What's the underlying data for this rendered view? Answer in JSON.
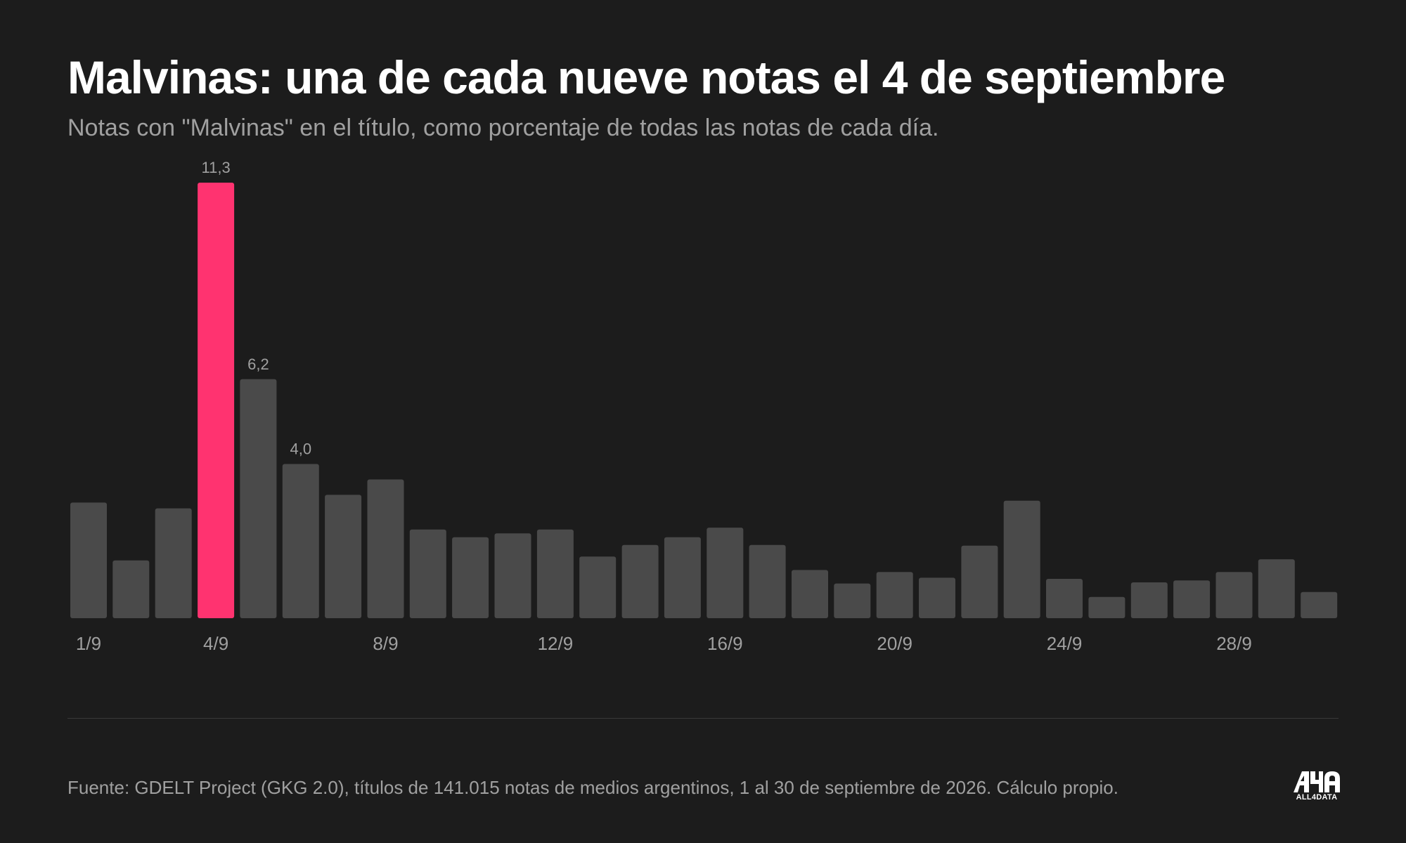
{
  "header": {
    "title": "Malvinas: una de cada nueve notas el 4 de septiembre",
    "subtitle": "Notas con \"Malvinas\" en el título, como porcentaje de todas las notas de cada día."
  },
  "footer": {
    "source": "Fuente: GDELT Project (GKG 2.0), títulos de 141.015 notas de medios argentinos, 1 al 30 de septiembre de 2026. Cálculo propio.",
    "logo_text": "ALL4DATA"
  },
  "colors": {
    "background": "#1c1c1c",
    "bar": "#4a4a4a",
    "highlight": "#ff3370",
    "text": "#ffffff",
    "muted": "#a0a0a0"
  },
  "chart_data": {
    "type": "bar",
    "title": "Malvinas: una de cada nueve notas el 4 de septiembre",
    "subtitle": "Notas con \"Malvinas\" en el título, como porcentaje de todas las notas de cada día.",
    "categories": [
      "1/9",
      "2/9",
      "3/9",
      "4/9",
      "5/9",
      "6/9",
      "7/9",
      "8/9",
      "9/9",
      "10/9",
      "11/9",
      "12/9",
      "13/9",
      "14/9",
      "15/9",
      "16/9",
      "17/9",
      "18/9",
      "19/9",
      "20/9",
      "21/9",
      "22/9",
      "23/9",
      "24/9",
      "25/9",
      "26/9",
      "27/9",
      "28/9",
      "29/9",
      "30/9"
    ],
    "values": [
      3.0,
      1.5,
      2.85,
      11.3,
      6.2,
      4.0,
      3.2,
      3.6,
      2.3,
      2.1,
      2.2,
      2.3,
      1.6,
      1.9,
      2.1,
      2.35,
      1.9,
      1.25,
      0.9,
      1.2,
      1.05,
      1.88,
      3.05,
      1.02,
      0.55,
      0.93,
      0.98,
      1.2,
      1.53,
      0.68
    ],
    "data_labels": [
      {
        "category": "4/9",
        "label": "11,3"
      },
      {
        "category": "5/9",
        "label": "6,2"
      },
      {
        "category": "6/9",
        "label": "4,0"
      }
    ],
    "highlight": "4/9",
    "x_tick_labels": [
      "1/9",
      "4/9",
      "8/9",
      "12/9",
      "16/9",
      "20/9",
      "24/9",
      "28/9"
    ],
    "ylim": [
      0,
      11.3
    ],
    "grid": false,
    "legend": "none"
  }
}
